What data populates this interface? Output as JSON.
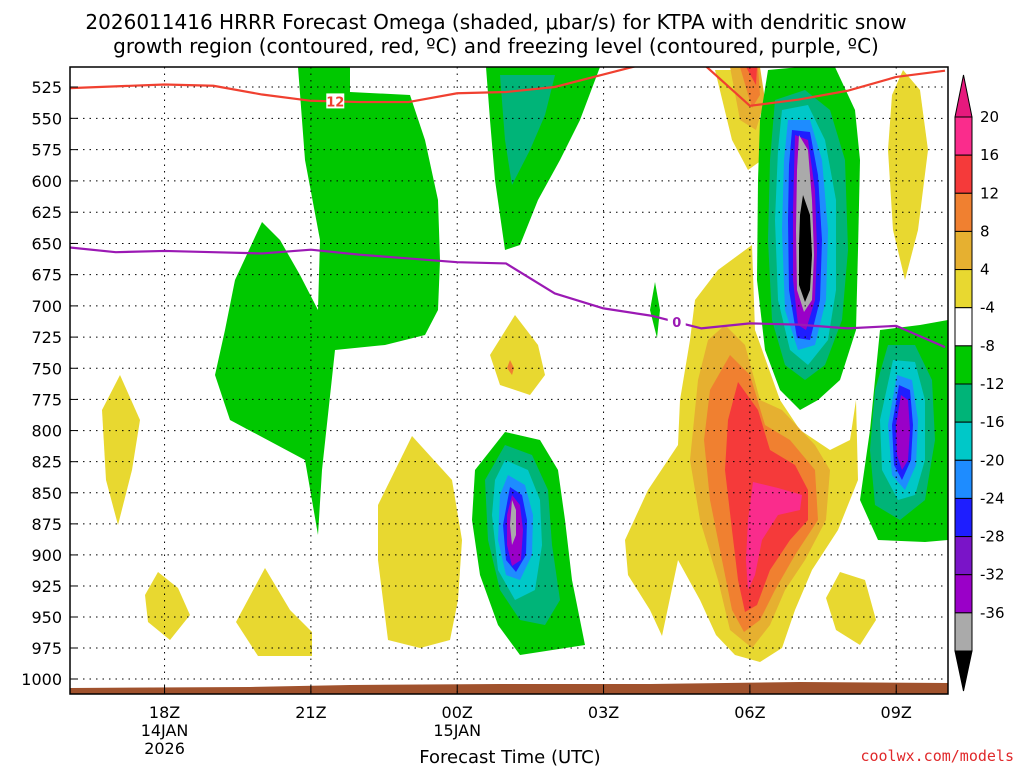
{
  "chart_data": {
    "type": "heatmap",
    "title_line1": "2026011416 HRRR Forecast Omega (shaded, μbar/s) for KTPA with dendritic snow",
    "title_line2": "growth region (contoured, red, ºC) and freezing level (contoured, purple, ºC)",
    "xlabel": "Forecast Time (UTC)",
    "credit": "coolwx.com/models",
    "y_axis": {
      "levels": [
        525,
        550,
        575,
        600,
        625,
        650,
        675,
        700,
        725,
        750,
        775,
        800,
        825,
        850,
        875,
        900,
        925,
        950,
        975,
        1000
      ],
      "labels": [
        "525",
        "550",
        "575",
        "600",
        "625",
        "650",
        "675",
        "700",
        "725",
        "750",
        "775",
        "800",
        "825",
        "850",
        "875",
        "900",
        "925",
        "950",
        "975",
        "1000"
      ]
    },
    "x_axis": {
      "ticks": [
        {
          "hour": 18,
          "label": "18Z",
          "date": "14JAN",
          "year": "2026"
        },
        {
          "hour": 21,
          "label": "21Z",
          "date": "",
          "year": ""
        },
        {
          "hour": 24,
          "label": "00Z",
          "date": "15JAN",
          "year": ""
        },
        {
          "hour": 27,
          "label": "03Z",
          "date": "",
          "year": ""
        },
        {
          "hour": 30,
          "label": "06Z",
          "date": "",
          "year": ""
        },
        {
          "hour": 33,
          "label": "09Z",
          "date": "",
          "year": ""
        }
      ],
      "range": [
        16,
        34
      ]
    },
    "colorbar": {
      "labels": [
        "20",
        "16",
        "12",
        "8",
        "4",
        "-4",
        "-8",
        "-12",
        "-16",
        "-20",
        "-24",
        "-28",
        "-32",
        "-36"
      ],
      "colors": [
        "#fa2c8c",
        "#f53a3a",
        "#f08030",
        "#e6b030",
        "#e8d830",
        "#ffffff",
        "#00c800",
        "#00b478",
        "#00c8c8",
        "#1e8cff",
        "#1e1eff",
        "#7a14c8",
        "#9a00c8",
        "#aaaaaa",
        "#000000"
      ],
      "top_color": "#e6197d",
      "bottom_color": "#000000"
    },
    "series": [
      {
        "name": "12",
        "color": "#f04030",
        "x": [
          16,
          18,
          19,
          20,
          21,
          22,
          23,
          24,
          25,
          26,
          27,
          28,
          29,
          30,
          31,
          32,
          33,
          34
        ],
        "y": [
          526,
          523,
          524,
          531,
          536,
          537,
          537,
          530,
          529,
          525,
          515,
          505,
          505,
          540,
          535,
          528,
          517,
          512
        ]
      },
      {
        "name": "0",
        "color": "#9b19b4",
        "x": [
          16,
          17,
          18,
          19,
          20,
          21,
          22,
          23,
          24,
          25,
          26,
          27,
          28,
          29,
          30,
          31,
          32,
          33,
          34
        ],
        "y": [
          653,
          657,
          656,
          657,
          658,
          655,
          659,
          662,
          665,
          666,
          690,
          702,
          708,
          718,
          714,
          715,
          718,
          716,
          733
        ]
      }
    ],
    "frame_colors": {
      "ground": "#a0522d"
    }
  }
}
